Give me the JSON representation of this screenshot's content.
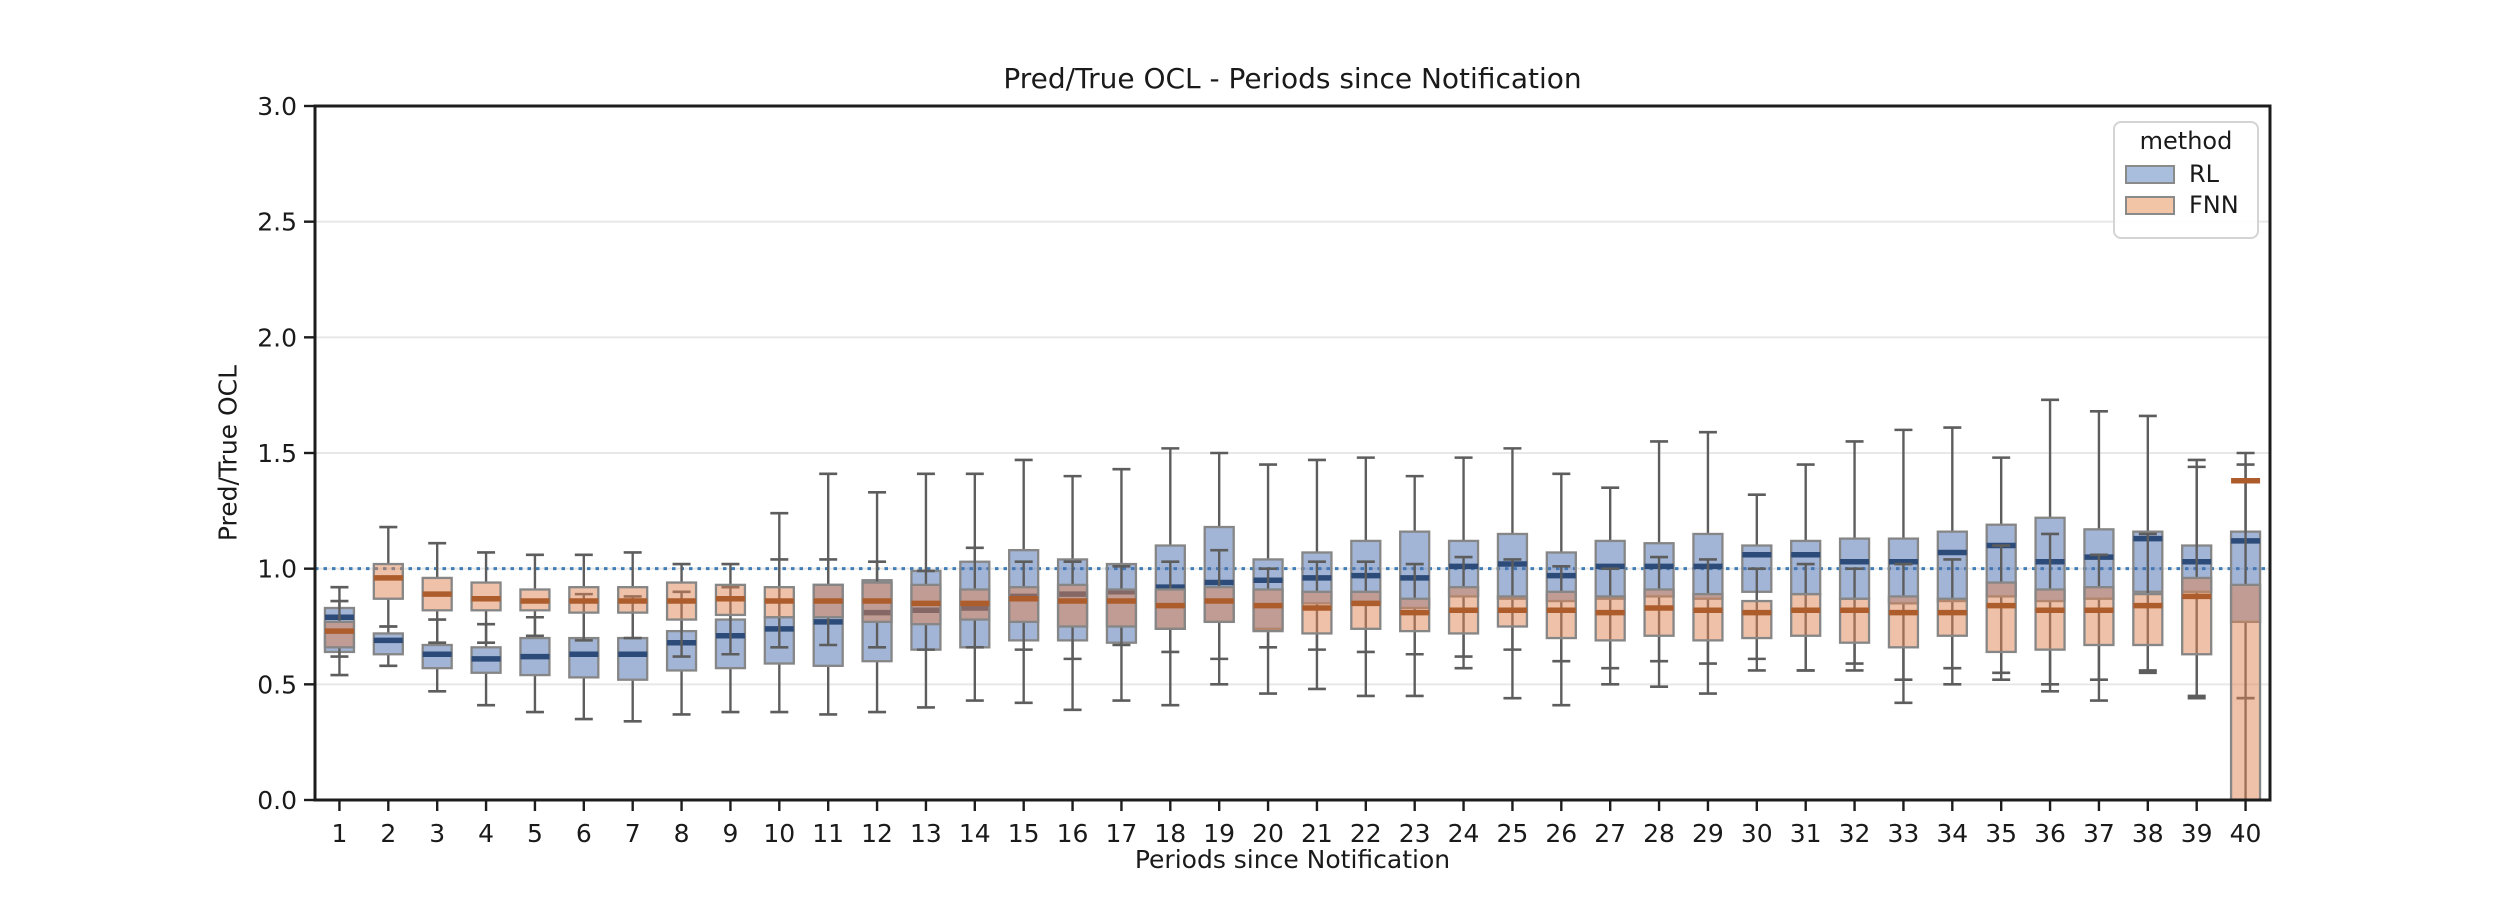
{
  "chart_data": {
    "type": "grouped_boxplot",
    "title": "Pred/True OCL - Periods since Notification",
    "xlabel": "Periods since Notification",
    "ylabel": "Pred/True OCL",
    "ylim": [
      0.0,
      3.0
    ],
    "yticks": [
      {
        "value": 0.0,
        "label": "0.0"
      },
      {
        "value": 0.5,
        "label": "0.5"
      },
      {
        "value": 1.0,
        "label": "1.0"
      },
      {
        "value": 1.5,
        "label": "1.5"
      },
      {
        "value": 2.0,
        "label": "2.0"
      },
      {
        "value": 2.5,
        "label": "2.5"
      },
      {
        "value": 3.0,
        "label": "3.0"
      }
    ],
    "grid": "horizontal",
    "categories": [
      "1",
      "2",
      "3",
      "4",
      "5",
      "6",
      "7",
      "8",
      "9",
      "10",
      "11",
      "12",
      "13",
      "14",
      "15",
      "16",
      "17",
      "18",
      "19",
      "20",
      "21",
      "22",
      "23",
      "24",
      "25",
      "26",
      "27",
      "28",
      "29",
      "30",
      "31",
      "32",
      "33",
      "34",
      "35",
      "36",
      "37",
      "38",
      "39",
      "40"
    ],
    "refline": {
      "y": 1.0,
      "style": "dotted",
      "color": "#3e7db8"
    },
    "legend": {
      "title": "method",
      "position": "upper right",
      "entries": [
        {
          "label": "RL",
          "swatch_fill": "#a9bedd"
        },
        {
          "label": "FNN",
          "swatch_fill": "#f2c5a7"
        }
      ]
    },
    "colors": {
      "rl_box_fill": "rgba(76,114,176,0.52)",
      "rl_median": "#2d4b78",
      "fnn_box_fill": "rgba(221,132,82,0.50)",
      "fnn_median": "#ad5c2c",
      "box_edge": "#868686",
      "whisker": "#5d5d5d",
      "grid": "#e8e8e8",
      "spine": "#1c1c1c"
    },
    "box_format": [
      "whisker_low",
      "q1",
      "median",
      "q3",
      "whisker_high"
    ],
    "series": [
      {
        "name": "RL",
        "boxes": [
          [
            0.54,
            0.64,
            0.79,
            0.83,
            0.92
          ],
          [
            0.58,
            0.63,
            0.69,
            0.72,
            0.75
          ],
          [
            0.47,
            0.57,
            0.63,
            0.67,
            0.78
          ],
          [
            0.41,
            0.55,
            0.61,
            0.66,
            0.76
          ],
          [
            0.38,
            0.54,
            0.62,
            0.7,
            0.79
          ],
          [
            0.35,
            0.53,
            0.63,
            0.7,
            0.89
          ],
          [
            0.34,
            0.52,
            0.63,
            0.7,
            0.88
          ],
          [
            0.37,
            0.56,
            0.68,
            0.73,
            0.9
          ],
          [
            0.38,
            0.57,
            0.71,
            0.78,
            0.92
          ],
          [
            0.38,
            0.59,
            0.74,
            0.79,
            1.24
          ],
          [
            0.37,
            0.58,
            0.77,
            0.93,
            1.41
          ],
          [
            0.38,
            0.6,
            0.81,
            0.95,
            1.33
          ],
          [
            0.4,
            0.65,
            0.82,
            0.99,
            1.41
          ],
          [
            0.43,
            0.66,
            0.83,
            1.03,
            1.41
          ],
          [
            0.42,
            0.69,
            0.88,
            1.08,
            1.47
          ],
          [
            0.39,
            0.69,
            0.89,
            1.04,
            1.4
          ],
          [
            0.43,
            0.68,
            0.9,
            1.02,
            1.43
          ],
          [
            0.41,
            0.74,
            0.92,
            1.1,
            1.52
          ],
          [
            0.5,
            0.77,
            0.94,
            1.18,
            1.5
          ],
          [
            0.46,
            0.74,
            0.95,
            1.04,
            1.45
          ],
          [
            0.48,
            0.85,
            0.96,
            1.07,
            1.47
          ],
          [
            0.45,
            0.85,
            0.97,
            1.12,
            1.48
          ],
          [
            0.45,
            0.83,
            0.96,
            1.16,
            1.4
          ],
          [
            0.57,
            0.88,
            1.01,
            1.12,
            1.48
          ],
          [
            0.44,
            0.87,
            1.02,
            1.15,
            1.52
          ],
          [
            0.41,
            0.86,
            0.97,
            1.07,
            1.41
          ],
          [
            0.5,
            0.87,
            1.01,
            1.12,
            1.35
          ],
          [
            0.49,
            0.88,
            1.01,
            1.11,
            1.55
          ],
          [
            0.46,
            0.87,
            1.01,
            1.15,
            1.59
          ],
          [
            0.61,
            0.9,
            1.06,
            1.1,
            1.32
          ],
          [
            0.56,
            0.89,
            1.06,
            1.12,
            1.45
          ],
          [
            0.59,
            0.87,
            1.03,
            1.13,
            1.55
          ],
          [
            0.42,
            0.85,
            1.03,
            1.13,
            1.6
          ],
          [
            0.5,
            0.86,
            1.07,
            1.16,
            1.61
          ],
          [
            0.55,
            0.88,
            1.1,
            1.19,
            1.48
          ],
          [
            0.5,
            0.86,
            1.03,
            1.22,
            1.73
          ],
          [
            0.43,
            0.87,
            1.05,
            1.17,
            1.68
          ],
          [
            0.56,
            0.9,
            1.13,
            1.16,
            1.66
          ],
          [
            0.45,
            0.9,
            1.03,
            1.1,
            1.47
          ],
          [
            0.44,
            0.77,
            1.12,
            1.16,
            1.5
          ]
        ]
      },
      {
        "name": "FNN",
        "boxes": [
          [
            0.62,
            0.66,
            0.73,
            0.77,
            0.86
          ],
          [
            0.75,
            0.87,
            0.96,
            1.02,
            1.18
          ],
          [
            0.68,
            0.82,
            0.89,
            0.96,
            1.11
          ],
          [
            0.68,
            0.82,
            0.87,
            0.94,
            1.07
          ],
          [
            0.71,
            0.82,
            0.86,
            0.91,
            1.06
          ],
          [
            0.69,
            0.81,
            0.86,
            0.92,
            1.06
          ],
          [
            0.7,
            0.81,
            0.86,
            0.92,
            1.07
          ],
          [
            0.62,
            0.78,
            0.86,
            0.94,
            1.02
          ],
          [
            0.63,
            0.8,
            0.87,
            0.93,
            1.02
          ],
          [
            0.66,
            0.79,
            0.86,
            0.92,
            1.04
          ],
          [
            0.67,
            0.79,
            0.86,
            0.93,
            1.04
          ],
          [
            0.66,
            0.77,
            0.86,
            0.94,
            1.03
          ],
          [
            0.65,
            0.76,
            0.85,
            0.93,
            0.99
          ],
          [
            0.66,
            0.78,
            0.85,
            0.91,
            1.09
          ],
          [
            0.65,
            0.77,
            0.87,
            0.92,
            1.03
          ],
          [
            0.61,
            0.75,
            0.86,
            0.93,
            1.03
          ],
          [
            0.67,
            0.75,
            0.86,
            0.91,
            1.01
          ],
          [
            0.64,
            0.74,
            0.84,
            0.91,
            1.03
          ],
          [
            0.61,
            0.77,
            0.86,
            0.92,
            1.08
          ],
          [
            0.66,
            0.73,
            0.84,
            0.91,
            1.0
          ],
          [
            0.65,
            0.72,
            0.83,
            0.9,
            1.03
          ],
          [
            0.64,
            0.74,
            0.85,
            0.9,
            1.03
          ],
          [
            0.63,
            0.73,
            0.81,
            0.87,
            1.02
          ],
          [
            0.62,
            0.72,
            0.82,
            0.92,
            1.05
          ],
          [
            0.65,
            0.75,
            0.82,
            0.88,
            1.04
          ],
          [
            0.6,
            0.7,
            0.82,
            0.9,
            1.01
          ],
          [
            0.57,
            0.69,
            0.81,
            0.88,
            1.0
          ],
          [
            0.6,
            0.71,
            0.83,
            0.91,
            1.05
          ],
          [
            0.59,
            0.69,
            0.82,
            0.89,
            1.04
          ],
          [
            0.56,
            0.7,
            0.81,
            0.86,
            1.0
          ],
          [
            0.56,
            0.71,
            0.82,
            0.89,
            1.02
          ],
          [
            0.56,
            0.68,
            0.82,
            0.87,
            1.0
          ],
          [
            0.52,
            0.66,
            0.81,
            0.88,
            1.02
          ],
          [
            0.57,
            0.71,
            0.81,
            0.87,
            1.04
          ],
          [
            0.52,
            0.64,
            0.84,
            0.94,
            1.1
          ],
          [
            0.47,
            0.65,
            0.82,
            0.91,
            1.15
          ],
          [
            0.52,
            0.67,
            0.82,
            0.92,
            1.06
          ],
          [
            0.55,
            0.67,
            0.84,
            0.89,
            1.15
          ],
          [
            0.44,
            0.63,
            0.88,
            0.96,
            1.44
          ],
          [
            0.44,
            0.0,
            1.38,
            0.93,
            1.45
          ]
        ]
      }
    ]
  }
}
